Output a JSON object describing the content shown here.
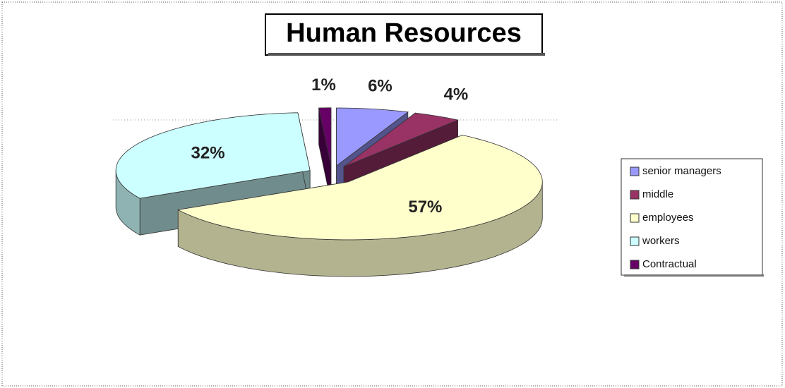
{
  "chart_data": {
    "type": "pie3d",
    "title": "Human Resources",
    "categories": [
      "senior managers",
      "middle",
      "employees",
      "workers",
      "Contractual"
    ],
    "values": [
      6,
      4,
      57,
      32,
      1
    ],
    "value_labels": [
      "6%",
      "4%",
      "57%",
      "32%",
      "1%"
    ],
    "colors": [
      "#9999ff",
      "#993366",
      "#ffffcc",
      "#ccffff",
      "#660066"
    ],
    "legend": "right"
  }
}
